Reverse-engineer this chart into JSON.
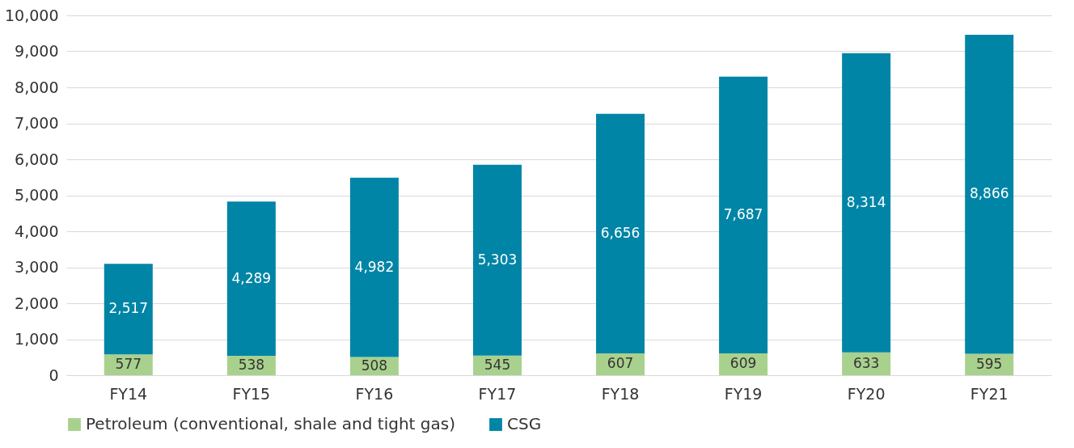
{
  "chart_data": {
    "type": "bar",
    "stacked": true,
    "categories": [
      "FY14",
      "FY15",
      "FY16",
      "FY17",
      "FY18",
      "FY19",
      "FY20",
      "FY21"
    ],
    "series": [
      {
        "name": "Petroleum (conventional, shale and tight gas)",
        "color": "#a9d18e",
        "values": [
          577,
          538,
          508,
          545,
          607,
          609,
          633,
          595
        ],
        "value_labels": [
          "577",
          "538",
          "508",
          "545",
          "607",
          "609",
          "633",
          "595"
        ]
      },
      {
        "name": "CSG",
        "color": "#0085a6",
        "values": [
          2517,
          4289,
          4982,
          5303,
          6656,
          7687,
          8314,
          8866
        ],
        "value_labels": [
          "2,517",
          "4,289",
          "4,982",
          "5,303",
          "6,656",
          "7,687",
          "8,314",
          "8,866"
        ]
      }
    ],
    "ylim": [
      0,
      10000
    ],
    "yticks": [
      0,
      {
        "value": 1000,
        "label": "1,000"
      },
      {
        "value": 2000,
        "label": "2,000"
      },
      {
        "value": 3000,
        "label": "3,000"
      },
      {
        "value": 4000,
        "label": "4,000"
      },
      {
        "value": 5000,
        "label": "5,000"
      },
      {
        "value": 6000,
        "label": "6,000"
      },
      {
        "value": 7000,
        "label": "7,000"
      },
      {
        "value": 8000,
        "label": "8,000"
      },
      {
        "value": 9000,
        "label": "9,000"
      },
      {
        "value": 10000,
        "label": "10,000"
      }
    ],
    "grid": "y",
    "legend": "bottom"
  }
}
